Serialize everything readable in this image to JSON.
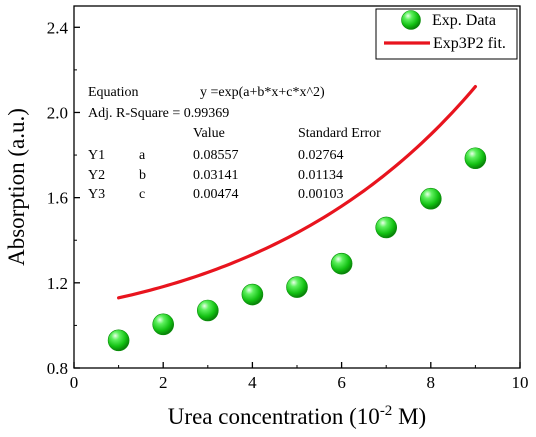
{
  "chart_data": {
    "type": "scatter",
    "xlabel": "Urea concentration (10",
    "xlabel_sup": "-2",
    "xlabel_suffix": " M)",
    "ylabel": "Absorption (a.u.)",
    "xlim": [
      0,
      10
    ],
    "ylim": [
      0.8,
      2.5
    ],
    "xticks": [
      0,
      2,
      4,
      6,
      8,
      10
    ],
    "yticks": [
      0.8,
      1.2,
      1.6,
      2.0,
      2.4
    ],
    "xtick_labels": [
      "0",
      "2",
      "4",
      "6",
      "8",
      "10"
    ],
    "ytick_labels": [
      "0.8",
      "1.2",
      "1.6",
      "2.0",
      "2.4"
    ],
    "grid": false,
    "legend_position": "top-right",
    "series": [
      {
        "name": "Exp. Data",
        "kind": "scatter",
        "color": "#1fcc1f",
        "x": [
          1,
          2,
          3,
          4,
          5,
          6,
          7,
          8,
          9
        ],
        "y": [
          0.93,
          1.005,
          1.07,
          1.145,
          1.18,
          1.29,
          1.46,
          1.595,
          1.785
        ]
      },
      {
        "name": "Exp3P2 fit.",
        "kind": "line",
        "color": "#e8141e",
        "model": "exp(a+b*x+c*x^2)",
        "params": {
          "a": 0.08557,
          "b": 0.03141,
          "c": 0.00474
        },
        "x_range": [
          1,
          9
        ]
      }
    ],
    "fit_table": {
      "equation_label": "Equation",
      "equation": "y =exp(a+b*x+c*x^2)",
      "r_square": "Adj. R-Square = 0.99369",
      "columns": [
        "Value",
        "Standard Error"
      ],
      "rows": [
        {
          "name": "Y1",
          "param": "a",
          "value": "0.08557",
          "error": "0.02764"
        },
        {
          "name": "Y2",
          "param": "b",
          "value": "0.03141",
          "error": "0.01134"
        },
        {
          "name": "Y3",
          "param": "c",
          "value": "0.00474",
          "error": "0.00103"
        }
      ]
    }
  }
}
